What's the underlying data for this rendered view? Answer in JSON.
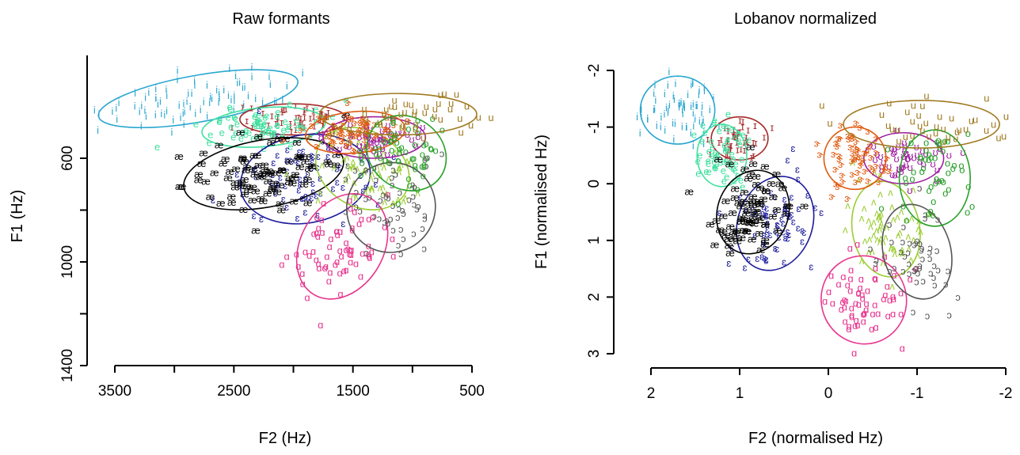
{
  "figure": {
    "panels": [
      {
        "title": "Raw formants",
        "xlabel": "F2 (Hz)",
        "ylabel": "F1 (Hz)",
        "xticks": [
          "3500",
          "2500",
          "1500",
          "500"
        ],
        "yticks": [
          "600",
          "1000",
          "1400"
        ]
      },
      {
        "title": "Lobanov normalized",
        "xlabel": "F2 (normalised Hz)",
        "ylabel": "F1 (normalised Hz)",
        "xticks": [
          "2",
          "1",
          "0",
          "-1",
          "-2"
        ],
        "yticks": [
          "-2",
          "-1",
          "0",
          "1",
          "2",
          "3"
        ]
      }
    ]
  },
  "chart_data": [
    {
      "type": "scatter",
      "title": "Raw formants",
      "xlabel": "F2 (Hz)",
      "ylabel": "F1 (Hz)",
      "xlim": [
        3500,
        500
      ],
      "ylim": [
        1400,
        200
      ],
      "x_reversed": true,
      "y_reversed": true,
      "xticks": [
        3500,
        3000,
        2500,
        2000,
        1500,
        1000,
        500
      ],
      "yticks": [
        600,
        800,
        1000,
        1200,
        1400
      ],
      "grid": false,
      "series": [
        {
          "label": "i",
          "color": "#2aa6d0",
          "n": 80,
          "center": [
            2800,
            370
          ],
          "ellipse": {
            "rx": 850,
            "ry": 90,
            "rot": 10
          }
        },
        {
          "label": "ɪ",
          "color": "#a52a2a",
          "n": 55,
          "center": [
            2000,
            450
          ],
          "ellipse": {
            "rx": 450,
            "ry": 60,
            "rot": 0
          }
        },
        {
          "label": "e",
          "color": "#40e0a0",
          "n": 70,
          "center": [
            2250,
            480
          ],
          "ellipse": {
            "rx": 520,
            "ry": 75,
            "rot": 5
          }
        },
        {
          "label": "ɛ",
          "color": "#1c1c9c",
          "n": 75,
          "center": [
            1900,
            680
          ],
          "ellipse": {
            "rx": 550,
            "ry": 170,
            "rot": 10
          }
        },
        {
          "label": "æ",
          "color": "#000000",
          "n": 95,
          "center": [
            2250,
            660
          ],
          "ellipse": {
            "rx": 680,
            "ry": 130,
            "rot": 10
          }
        },
        {
          "label": "ʌ",
          "color": "#9acd32",
          "n": 70,
          "center": [
            1420,
            640
          ],
          "ellipse": {
            "rx": 320,
            "ry": 190,
            "rot": 60
          }
        },
        {
          "label": "ɑ",
          "color": "#e8358e",
          "n": 70,
          "center": [
            1590,
            940
          ],
          "ellipse": {
            "rx": 470,
            "ry": 160,
            "rot": 60
          }
        },
        {
          "label": "ɔ",
          "color": "#555555",
          "n": 55,
          "center": [
            1180,
            790
          ],
          "ellipse": {
            "rx": 380,
            "ry": 170,
            "rot": 60
          }
        },
        {
          "label": "ʊ",
          "color": "#a020a0",
          "n": 55,
          "center": [
            1320,
            520
          ],
          "ellipse": {
            "rx": 430,
            "ry": 80,
            "rot": 0
          }
        },
        {
          "label": "ɝ",
          "color": "#e05a10",
          "n": 70,
          "center": [
            1480,
            500
          ],
          "ellipse": {
            "rx": 420,
            "ry": 80,
            "rot": 5
          }
        },
        {
          "label": "o",
          "color": "#28a028",
          "n": 55,
          "center": [
            1050,
            580
          ],
          "ellipse": {
            "rx": 300,
            "ry": 160,
            "rot": 55
          }
        },
        {
          "label": "u",
          "color": "#a07a20",
          "n": 45,
          "center": [
            1120,
            430
          ],
          "ellipse": {
            "rx": 660,
            "ry": 80,
            "rot": 0
          }
        }
      ]
    },
    {
      "type": "scatter",
      "title": "Lobanov normalized",
      "xlabel": "F2 (normalised Hz)",
      "ylabel": "F1 (normalised Hz)",
      "xlim": [
        2.4,
        -2.0
      ],
      "ylim": [
        3.2,
        -2.3
      ],
      "x_reversed": true,
      "y_reversed": true,
      "xticks": [
        2,
        1,
        0,
        -1,
        -2
      ],
      "yticks": [
        -2,
        -1,
        0,
        1,
        2,
        3
      ],
      "grid": false,
      "series": [
        {
          "label": "i",
          "color": "#2aa6d0",
          "n": 70,
          "center": [
            1.7,
            -1.3
          ],
          "ellipse": {
            "rx": 0.42,
            "ry": 0.6,
            "rot": 0
          }
        },
        {
          "label": "ɪ",
          "color": "#a52a2a",
          "n": 45,
          "center": [
            1.0,
            -0.8
          ],
          "ellipse": {
            "rx": 0.32,
            "ry": 0.38,
            "rot": 0
          }
        },
        {
          "label": "e",
          "color": "#40e0a0",
          "n": 60,
          "center": [
            1.2,
            -0.5
          ],
          "ellipse": {
            "rx": 0.28,
            "ry": 0.55,
            "rot": 0
          }
        },
        {
          "label": "ɛ",
          "color": "#1c1c9c",
          "n": 70,
          "center": [
            0.6,
            0.7
          ],
          "ellipse": {
            "rx": 0.42,
            "ry": 0.85,
            "rot": -20
          }
        },
        {
          "label": "æ",
          "color": "#000000",
          "n": 85,
          "center": [
            0.85,
            0.5
          ],
          "ellipse": {
            "rx": 0.4,
            "ry": 0.75,
            "rot": -20
          }
        },
        {
          "label": "ʌ",
          "color": "#9acd32",
          "n": 65,
          "center": [
            -0.65,
            0.8
          ],
          "ellipse": {
            "rx": 0.38,
            "ry": 0.85,
            "rot": 10
          }
        },
        {
          "label": "ɑ",
          "color": "#e8358e",
          "n": 65,
          "center": [
            -0.4,
            2.05
          ],
          "ellipse": {
            "rx": 0.48,
            "ry": 0.78,
            "rot": 15
          }
        },
        {
          "label": "ɔ",
          "color": "#555555",
          "n": 50,
          "center": [
            -1.0,
            1.2
          ],
          "ellipse": {
            "rx": 0.38,
            "ry": 0.85,
            "rot": 15
          }
        },
        {
          "label": "ʊ",
          "color": "#a020a0",
          "n": 50,
          "center": [
            -0.85,
            -0.45
          ],
          "ellipse": {
            "rx": 0.45,
            "ry": 0.45,
            "rot": 0
          }
        },
        {
          "label": "ɝ",
          "color": "#e05a10",
          "n": 60,
          "center": [
            -0.3,
            -0.45
          ],
          "ellipse": {
            "rx": 0.35,
            "ry": 0.55,
            "rot": 0
          }
        },
        {
          "label": "o",
          "color": "#28a028",
          "n": 50,
          "center": [
            -1.2,
            -0.1
          ],
          "ellipse": {
            "rx": 0.4,
            "ry": 0.85,
            "rot": 0
          }
        },
        {
          "label": "u",
          "color": "#a07a20",
          "n": 40,
          "center": [
            -1.05,
            -1.05
          ],
          "ellipse": {
            "rx": 0.88,
            "ry": 0.42,
            "rot": 0
          }
        }
      ]
    }
  ]
}
